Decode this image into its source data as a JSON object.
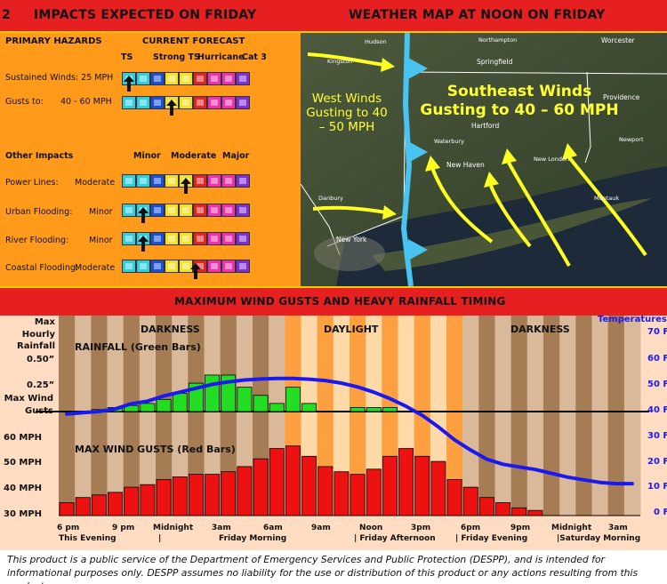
{
  "header": {
    "page_number_fragment": "2",
    "left_title": "IMPACTS EXPECTED ON FRIDAY",
    "right_title": "WEATHER MAP AT NOON ON FRIDAY",
    "middle_title": "MAXIMUM WIND GUSTS AND HEAVY RAINFALL TIMING"
  },
  "impacts": {
    "primary_hazards_heading": "PRIMARY HAZARDS",
    "current_forecast_heading": "CURRENT FORECAST",
    "forecast_scale_labels": [
      "TS",
      "Strong TS",
      "Hurricane",
      "Cat 3"
    ],
    "sustained_winds_label": "Sustained Winds: 25 MPH",
    "gusts_label": "Gusts to:",
    "gusts_value": "40 - 60 MPH",
    "other_impacts_heading": "Other Impacts",
    "impact_scale_labels": [
      "Minor",
      "Moderate",
      "Major"
    ],
    "swatch_colors": [
      "#33ccdd",
      "#1a4fd6",
      "#f2e12a",
      "#e02424",
      "#ee2fae",
      "#7d2fd0"
    ],
    "rows": [
      {
        "label": "Power Lines:",
        "level": "Moderate"
      },
      {
        "label": "Urban Flooding:",
        "level": "Minor"
      },
      {
        "label": "River Flooding:",
        "level": "Minor"
      },
      {
        "label": "Coastal Flooding:",
        "level": "Moderate"
      }
    ]
  },
  "map": {
    "west_label": "West Winds Gusting to 40 – 50 MPH",
    "southeast_label": "Southeast Winds Gusting to 40 – 60 MPH",
    "towns": [
      "Hudson",
      "Northampton",
      "Worcester",
      "Kingston",
      "Springfield",
      "Hartford",
      "Providence",
      "Waterbury",
      "Newport",
      "New Haven",
      "New London",
      "Danbury",
      "Montauk",
      "New York"
    ]
  },
  "chart_data": {
    "type": "bar",
    "time_labels": [
      "6 pm",
      "9 pm",
      "Midnight",
      "3am",
      "6am",
      "9am",
      "Noon",
      "3pm",
      "6pm",
      "9pm",
      "Midnight",
      "3am"
    ],
    "time_sublabels": [
      "This Evening",
      "|",
      "Friday Morning",
      "| Friday Afternoon",
      "| Friday Evening",
      "|Saturday Morning"
    ],
    "period_labels": [
      "DARKNESS",
      "DAYLIGHT",
      "DARKNESS"
    ],
    "rainfall_axis_title": "Max Hourly Rainfall",
    "rainfall_ticks": [
      "0.50”",
      "0.25”"
    ],
    "wind_axis_title": "Max Wind Gusts",
    "wind_ticks": [
      "60 MPH",
      "50 MPH",
      "40 MPH",
      "30 MPH"
    ],
    "temperature_axis_title": "Temperatures",
    "temperature_ticks": [
      "70 F",
      "60 F",
      "50 F",
      "40 F",
      "30 F",
      "20 F",
      "10 F",
      "0 F"
    ],
    "rainfall_title": "RAINFALL (Green Bars)",
    "wind_title": "MAX WIND GUSTS (Red Bars)",
    "rainfall_color": "#22dd22",
    "wind_color": "#ee1111",
    "temperature_color": "#1a1aee",
    "rainfall": [
      0,
      0,
      0.02,
      0.04,
      0.06,
      0.08,
      0.12,
      0.18,
      0.28,
      0.36,
      0.36,
      0.24,
      0.16,
      0.08,
      0.24,
      0.08,
      0,
      0,
      0.04,
      0.04,
      0.04,
      0,
      0,
      0,
      0,
      0,
      0,
      0,
      0,
      0,
      0,
      0,
      0,
      0,
      0,
      0
    ],
    "wind_gusts": [
      35,
      37,
      38,
      39,
      41,
      42,
      44,
      45,
      46,
      46,
      47,
      49,
      52,
      56,
      57,
      53,
      49,
      47,
      46,
      48,
      53,
      56,
      53,
      51,
      44,
      41,
      37,
      35,
      33,
      32,
      0,
      0,
      0,
      0,
      0,
      0
    ],
    "temperature": [
      38,
      38.5,
      39,
      40,
      42,
      43,
      45,
      46.5,
      48,
      49.5,
      50.5,
      51.2,
      51.6,
      51.8,
      51.8,
      51.5,
      51,
      50,
      48.5,
      46.5,
      44,
      41,
      37.5,
      33,
      28,
      24,
      20.5,
      18.5,
      17.5,
      16.5,
      15,
      13.5,
      12.5,
      11.5,
      11,
      11
    ]
  },
  "footer": {
    "disclaimer": "This product is a public service of the Department of Emergency Services and Public Protection (DESPP), and is intended for informational purposes only.  DESPP assumes no liability for the use or distribution of this product or any actions resulting from this product."
  }
}
